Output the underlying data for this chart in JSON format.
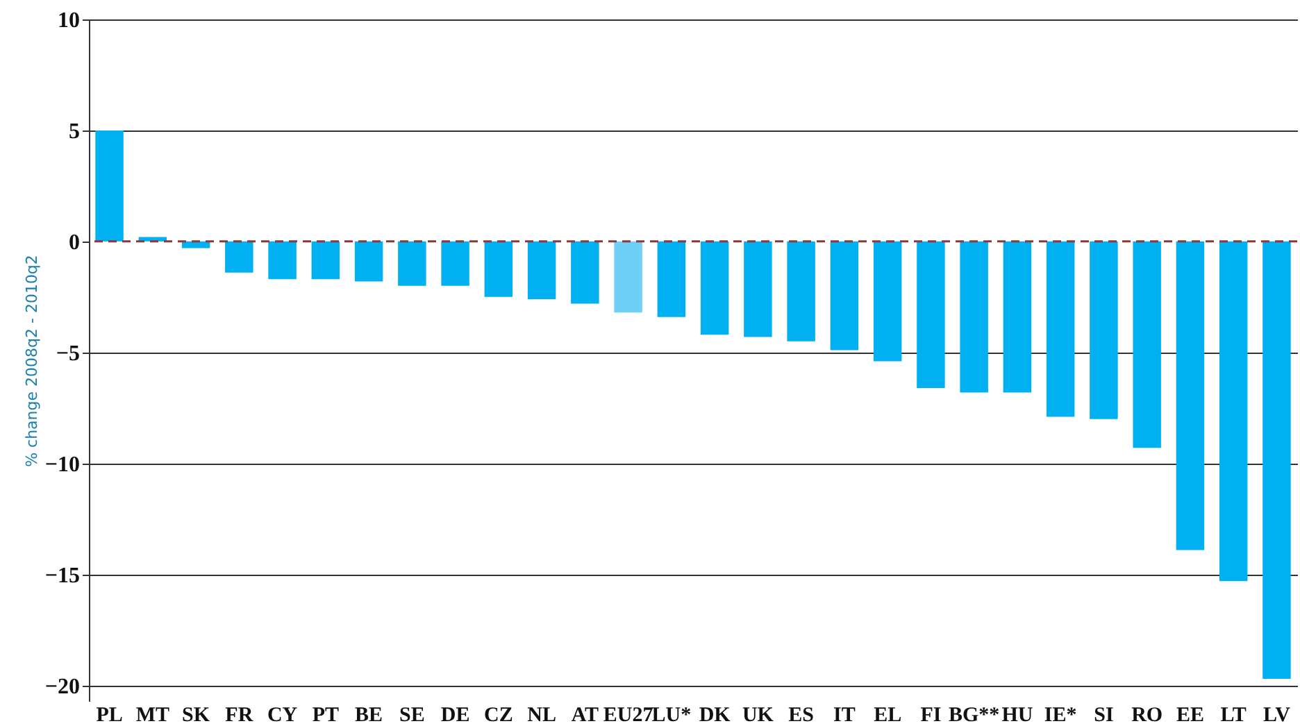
{
  "chart_data": {
    "type": "bar",
    "ylabel": "% change 2008q2 - 2010q2",
    "categories": [
      "PL",
      "MT",
      "SK",
      "FR",
      "CY",
      "PT",
      "BE",
      "SE",
      "DE",
      "CZ",
      "NL",
      "AT",
      "EU27",
      "LU*",
      "DK",
      "UK",
      "ES",
      "IT",
      "EL",
      "FI",
      "BG**",
      "HU",
      "IE*",
      "SI",
      "RO",
      "EE",
      "LT",
      "LV"
    ],
    "values": [
      5.0,
      0.2,
      -0.3,
      -1.4,
      -1.7,
      -1.7,
      -1.8,
      -2.0,
      -2.0,
      -2.5,
      -2.6,
      -2.8,
      -3.2,
      -3.4,
      -4.2,
      -4.3,
      -4.5,
      -4.9,
      -5.4,
      -6.6,
      -6.8,
      -6.8,
      -7.9,
      -8.0,
      -9.3,
      -13.9,
      -15.3,
      -19.7
    ],
    "colors": [
      "#00b0f0",
      "#00b0f0",
      "#00b0f0",
      "#00b0f0",
      "#00b0f0",
      "#00b0f0",
      "#00b0f0",
      "#00b0f0",
      "#00b0f0",
      "#00b0f0",
      "#00b0f0",
      "#00b0f0",
      "#6fd0f6",
      "#00b0f0",
      "#00b0f0",
      "#00b0f0",
      "#00b0f0",
      "#00b0f0",
      "#00b0f0",
      "#00b0f0",
      "#00b0f0",
      "#00b0f0",
      "#00b0f0",
      "#00b0f0",
      "#00b0f0",
      "#00b0f0",
      "#00b0f0",
      "#00b0f0"
    ],
    "ylim": [
      -20.7,
      10
    ],
    "yticks": [
      10,
      5,
      0,
      -5,
      -10,
      -15,
      -20
    ],
    "grid": "y",
    "ref_lines": [
      {
        "axis": "y",
        "value": 0,
        "color": "#8b3a3a",
        "line_style": "dashed"
      }
    ]
  }
}
